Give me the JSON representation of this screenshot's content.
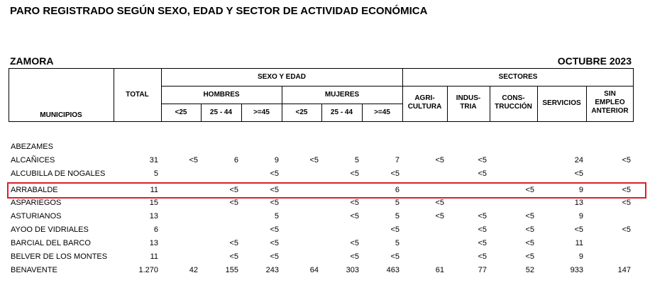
{
  "header": {
    "title": "PARO REGISTRADO SEGÚN SEXO, EDAD Y SECTOR DE ACTIVIDAD ECONÓMICA",
    "province": "ZAMORA",
    "period": "OCTUBRE 2023"
  },
  "table": {
    "columns": {
      "municipios": "MUNICIPIOS",
      "total": "TOTAL",
      "sexo_edad": "SEXO Y EDAD",
      "hombres": "HOMBRES",
      "mujeres": "MUJERES",
      "hombres_ages": [
        "<25",
        "25 - 44",
        ">=45"
      ],
      "mujeres_ages": [
        "<25",
        "25 - 44",
        ">=45"
      ],
      "sectores": "SECTORES",
      "sector_names": [
        "AGRI-\nCULTURA",
        "INDUS-\nTRIA",
        "CONS-\nTRUCCIÓN",
        "SERVICIOS",
        "SIN\nEMPLEO\nANTERIOR"
      ]
    },
    "rows": [
      {
        "name": "ABEZAMES",
        "cells": [
          null,
          null,
          null,
          null,
          null,
          null,
          null,
          null,
          null,
          null,
          null,
          null
        ]
      },
      {
        "name": "ALCAÑICES",
        "cells": [
          "31",
          "<5",
          "6",
          "9",
          "<5",
          "5",
          "7",
          "<5",
          "<5",
          null,
          "24",
          "<5"
        ]
      },
      {
        "name": "ALCUBILLA DE NOGALES",
        "cells": [
          "5",
          null,
          null,
          "<5",
          null,
          "<5",
          "<5",
          null,
          "<5",
          null,
          "<5",
          null
        ]
      },
      {
        "name": "ARRABALDE",
        "cells": [
          "11",
          null,
          "<5",
          "<5",
          null,
          null,
          "6",
          null,
          null,
          "<5",
          "9",
          "<5"
        ],
        "highlighted": true
      },
      {
        "name": "ASPARIEGOS",
        "cells": [
          "15",
          null,
          "<5",
          "<5",
          null,
          "<5",
          "5",
          "<5",
          null,
          null,
          "13",
          "<5"
        ]
      },
      {
        "name": "ASTURIANOS",
        "cells": [
          "13",
          null,
          null,
          "5",
          null,
          "<5",
          "5",
          "<5",
          "<5",
          "<5",
          "9",
          null
        ]
      },
      {
        "name": "AYOO DE VIDRIALES",
        "cells": [
          "6",
          null,
          null,
          "<5",
          null,
          null,
          "<5",
          null,
          "<5",
          "<5",
          "<5",
          "<5"
        ]
      },
      {
        "name": "BARCIAL DEL BARCO",
        "cells": [
          "13",
          null,
          "<5",
          "<5",
          null,
          "<5",
          "5",
          null,
          "<5",
          "<5",
          "11",
          null
        ]
      },
      {
        "name": "BELVER DE LOS MONTES",
        "cells": [
          "11",
          null,
          "<5",
          "<5",
          null,
          "<5",
          "<5",
          null,
          "<5",
          "<5",
          "9",
          null
        ]
      },
      {
        "name": "BENAVENTE",
        "cells": [
          "1.270",
          "42",
          "155",
          "243",
          "64",
          "303",
          "463",
          "61",
          "77",
          "52",
          "933",
          "147"
        ]
      }
    ]
  }
}
